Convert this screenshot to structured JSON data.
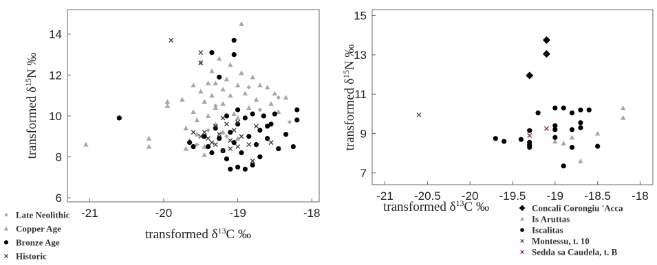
{
  "chart_data": [
    {
      "type": "scatter",
      "xlabel": "transformed δ13C ‰",
      "ylabel": "transformed δ15N ‰",
      "xlim": [
        -21.3,
        -17.9
      ],
      "ylim": [
        5.8,
        15.2
      ],
      "xticks": [
        -21,
        -20,
        -19,
        -18
      ],
      "yticks": [
        6,
        8,
        10,
        12,
        14
      ],
      "grid": false,
      "legend_position": "bottom-left (outside)",
      "series": [
        {
          "name": "Late Neolithic",
          "marker": "diamond-small",
          "color": "#a8a8a8",
          "points": [
            [
              -19.55,
              8.6
            ],
            [
              -19.4,
              9.3
            ],
            [
              -19.3,
              10.5
            ],
            [
              -19.15,
              9.0
            ],
            [
              -18.85,
              11.4
            ],
            [
              -18.7,
              10.3
            ],
            [
              -18.45,
              10.9
            ],
            [
              -18.3,
              9.7
            ]
          ]
        },
        {
          "name": "Copper Age",
          "marker": "triangle",
          "color": "#a8a8a8",
          "points": [
            [
              -21.05,
              8.6
            ],
            [
              -20.6,
              9.9
            ],
            [
              -20.2,
              8.9
            ],
            [
              -20.2,
              8.5
            ],
            [
              -19.95,
              10.7
            ],
            [
              -19.95,
              10.5
            ],
            [
              -19.75,
              10.8
            ],
            [
              -19.7,
              9.4
            ],
            [
              -19.65,
              8.8
            ],
            [
              -19.7,
              8.4
            ],
            [
              -19.6,
              11.5
            ],
            [
              -19.6,
              10.2
            ],
            [
              -19.55,
              9.8
            ],
            [
              -19.55,
              9.1
            ],
            [
              -19.5,
              12.6
            ],
            [
              -19.5,
              11.2
            ],
            [
              -19.45,
              10.7
            ],
            [
              -19.45,
              8.1
            ],
            [
              -19.4,
              11.6
            ],
            [
              -19.4,
              10.0
            ],
            [
              -19.35,
              12.2
            ],
            [
              -19.35,
              11.0
            ],
            [
              -19.3,
              11.6
            ],
            [
              -19.3,
              10.4
            ],
            [
              -19.3,
              9.6
            ],
            [
              -19.25,
              12.8
            ],
            [
              -19.2,
              11.3
            ],
            [
              -19.2,
              10.6
            ],
            [
              -19.2,
              9.2
            ],
            [
              -19.15,
              11.8
            ],
            [
              -19.1,
              12.5
            ],
            [
              -19.1,
              11.0
            ],
            [
              -19.05,
              10.1
            ],
            [
              -19.0,
              11.5
            ],
            [
              -19.0,
              9.9
            ],
            [
              -18.95,
              14.5
            ],
            [
              -18.95,
              12.1
            ],
            [
              -18.9,
              11.1
            ],
            [
              -18.85,
              10.4
            ],
            [
              -18.8,
              11.9
            ],
            [
              -18.75,
              10.8
            ],
            [
              -18.7,
              11.5
            ],
            [
              -18.65,
              10.0
            ],
            [
              -18.6,
              11.4
            ],
            [
              -18.55,
              10.6
            ],
            [
              -18.5,
              11.1
            ],
            [
              -18.45,
              10.2
            ],
            [
              -18.35,
              10.9
            ],
            [
              -19.45,
              8.5
            ],
            [
              -19.0,
              8.9
            ]
          ]
        },
        {
          "name": "Bronze Age",
          "marker": "circle",
          "color": "#000000",
          "points": [
            [
              -20.6,
              9.9
            ],
            [
              -19.35,
              13.1
            ],
            [
              -19.25,
              11.9
            ],
            [
              -19.05,
              13.7
            ],
            [
              -19.05,
              13.0
            ],
            [
              -19.65,
              8.7
            ],
            [
              -19.6,
              8.5
            ],
            [
              -19.45,
              9.0
            ],
            [
              -19.4,
              8.5
            ],
            [
              -19.3,
              9.4
            ],
            [
              -19.25,
              8.9
            ],
            [
              -19.2,
              8.3
            ],
            [
              -19.15,
              10.0
            ],
            [
              -19.1,
              9.2
            ],
            [
              -19.05,
              8.7
            ],
            [
              -19.0,
              10.3
            ],
            [
              -19.0,
              9.6
            ],
            [
              -18.95,
              8.2
            ],
            [
              -18.9,
              9.9
            ],
            [
              -18.85,
              9.0
            ],
            [
              -18.8,
              10.1
            ],
            [
              -18.75,
              8.6
            ],
            [
              -18.7,
              9.3
            ],
            [
              -18.65,
              10.0
            ],
            [
              -18.6,
              8.9
            ],
            [
              -18.55,
              9.6
            ],
            [
              -18.5,
              10.1
            ],
            [
              -18.45,
              8.4
            ],
            [
              -18.35,
              9.1
            ],
            [
              -18.25,
              8.5
            ],
            [
              -18.2,
              10.3
            ],
            [
              -18.2,
              9.8
            ],
            [
              -19.1,
              7.4
            ],
            [
              -19.0,
              7.5
            ],
            [
              -18.9,
              7.4
            ],
            [
              -18.8,
              7.6
            ],
            [
              -19.15,
              7.9
            ],
            [
              -19.35,
              8.2
            ],
            [
              -18.6,
              9.5
            ],
            [
              -18.7,
              8.0
            ]
          ]
        },
        {
          "name": "Historic",
          "marker": "x",
          "color": "#333333",
          "points": [
            [
              -19.9,
              13.7
            ],
            [
              -19.5,
              13.1
            ],
            [
              -19.5,
              12.6
            ],
            [
              -19.6,
              9.2
            ],
            [
              -19.5,
              9.0
            ],
            [
              -19.45,
              9.2
            ],
            [
              -19.4,
              8.9
            ],
            [
              -19.35,
              8.7
            ],
            [
              -19.3,
              8.6
            ],
            [
              -19.3,
              9.5
            ],
            [
              -19.25,
              9.1
            ],
            [
              -19.2,
              8.3
            ],
            [
              -19.15,
              9.6
            ],
            [
              -19.1,
              8.8
            ],
            [
              -19.1,
              8.4
            ],
            [
              -19.05,
              9.3
            ],
            [
              -19.0,
              8.5
            ],
            [
              -18.95,
              9.0
            ],
            [
              -18.85,
              8.6
            ],
            [
              -18.75,
              9.5
            ],
            [
              -18.55,
              8.7
            ],
            [
              -18.8,
              7.8
            ],
            [
              -19.2,
              9.9
            ],
            [
              -19.0,
              9.7
            ]
          ]
        }
      ]
    },
    {
      "type": "scatter",
      "xlabel": "transformed δ13C ‰",
      "ylabel": "transformed δ15N ‰",
      "xlim": [
        -21.15,
        -17.85
      ],
      "ylim": [
        6.4,
        15.3
      ],
      "xticks": [
        -21,
        -20.5,
        -20,
        -19.5,
        -19,
        -18.5,
        -18
      ],
      "yticks": [
        7,
        9,
        11,
        13,
        15
      ],
      "grid": false,
      "legend_position": "bottom-right (outside)",
      "series": [
        {
          "name": "Concali Corongiu 'Acca",
          "marker": "diamond",
          "color": "#000000",
          "points": [
            [
              -19.3,
              11.95
            ],
            [
              -19.1,
              13.75
            ],
            [
              -19.1,
              13.05
            ]
          ]
        },
        {
          "name": "Is Aruttas",
          "marker": "triangle",
          "color": "#a8a8a8",
          "points": [
            [
              -18.2,
              10.3
            ],
            [
              -18.2,
              9.8
            ],
            [
              -18.5,
              9.0
            ],
            [
              -18.7,
              7.6
            ],
            [
              -18.8,
              8.8
            ],
            [
              -18.9,
              8.5
            ],
            [
              -19.0,
              8.6
            ]
          ]
        },
        {
          "name": "Iscalitas",
          "marker": "circle",
          "color": "#000000",
          "points": [
            [
              -19.7,
              8.75
            ],
            [
              -19.6,
              8.6
            ],
            [
              -19.4,
              8.7
            ],
            [
              -19.3,
              9.15
            ],
            [
              -19.3,
              8.55
            ],
            [
              -19.3,
              8.4
            ],
            [
              -19.3,
              8.3
            ],
            [
              -19.2,
              10.05
            ],
            [
              -19.0,
              10.3
            ],
            [
              -19.0,
              9.4
            ],
            [
              -19.0,
              9.2
            ],
            [
              -19.0,
              8.8
            ],
            [
              -18.9,
              10.3
            ],
            [
              -18.9,
              7.35
            ],
            [
              -18.8,
              10.05
            ],
            [
              -18.8,
              9.2
            ],
            [
              -18.8,
              8.3
            ],
            [
              -18.7,
              10.2
            ],
            [
              -18.7,
              9.55
            ],
            [
              -18.7,
              9.3
            ],
            [
              -18.6,
              10.2
            ],
            [
              -18.5,
              8.35
            ]
          ]
        },
        {
          "name": "Montessu, t. 10",
          "marker": "x",
          "color": "#444444",
          "points": [
            [
              -20.6,
              9.95
            ]
          ]
        },
        {
          "name": "Sedda sa Caudela, t. B",
          "marker": "x",
          "color": "#8b1a1a",
          "points": [
            [
              -19.1,
              9.25
            ],
            [
              -19.3,
              8.9
            ]
          ]
        }
      ]
    }
  ]
}
